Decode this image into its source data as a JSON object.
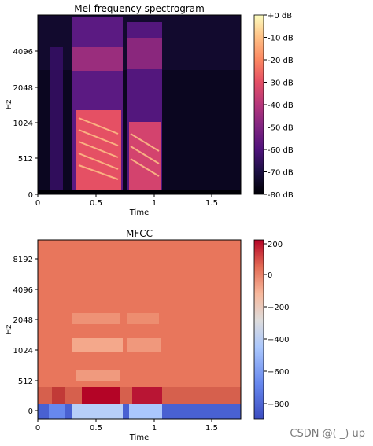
{
  "chart_data": [
    {
      "type": "heatmap",
      "title": "Mel-frequency spectrogram",
      "xlabel": "Time",
      "ylabel": "Hz",
      "xlim": [
        0,
        1.75
      ],
      "x_ticks": [
        0,
        0.5,
        1,
        1.5
      ],
      "x_tick_labels": [
        "0",
        "0.5",
        "1",
        "1.5"
      ],
      "y_scale": "mel",
      "y_ticks": [
        0,
        512,
        1024,
        2048,
        4096
      ],
      "y_tick_labels": [
        "0",
        "512",
        "1024",
        "2048",
        "4096"
      ],
      "colormap": "magma",
      "colorbar": {
        "range": [
          -80,
          0
        ],
        "ticks": [
          0,
          -10,
          -20,
          -30,
          -40,
          -50,
          -60,
          -70,
          -80
        ],
        "tick_labels": [
          "+0 dB",
          "-10 dB",
          "-20 dB",
          "-30 dB",
          "-40 dB",
          "-50 dB",
          "-60 dB",
          "-70 dB",
          "-80 dB"
        ]
      },
      "speech_segments_seconds": [
        [
          0.1,
          0.2
        ],
        [
          0.3,
          0.72
        ],
        [
          0.78,
          1.08
        ]
      ]
    },
    {
      "type": "heatmap",
      "title": "MFCC",
      "xlabel": "Time",
      "ylabel": "Hz",
      "xlim": [
        0,
        1.75
      ],
      "x_ticks": [
        0,
        0.5,
        1,
        1.5
      ],
      "x_tick_labels": [
        "0",
        "0.5",
        "1",
        "1.5"
      ],
      "y_ticks": [
        0,
        512,
        1024,
        2048,
        4096,
        8192
      ],
      "y_tick_labels": [
        "0",
        "512",
        "1024",
        "2048",
        "4096",
        "8192"
      ],
      "colormap": "coolwarm",
      "colorbar": {
        "range": [
          -900,
          200
        ],
        "ticks": [
          200,
          0,
          -200,
          -400,
          -600,
          -800
        ],
        "tick_labels": [
          "200",
          "0",
          "−200",
          "−400",
          "−600",
          "−800"
        ]
      }
    }
  ],
  "watermark": "CSDN @(\u0001 \u0001_\u0001)\u0001 up"
}
